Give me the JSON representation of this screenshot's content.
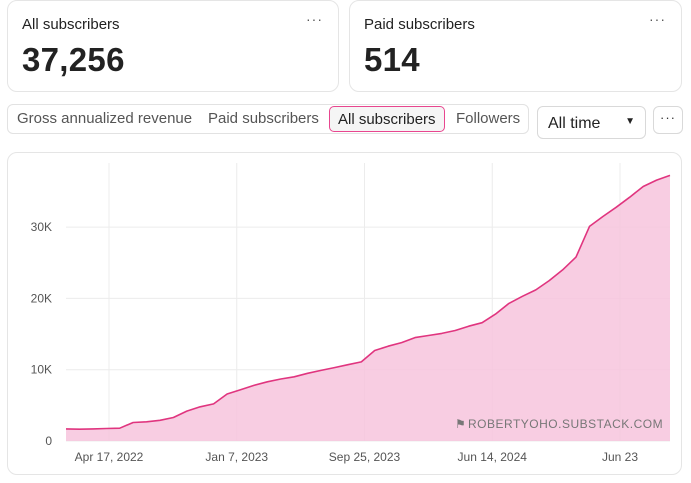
{
  "cards": [
    {
      "label": "All subscribers",
      "value": "37,256"
    },
    {
      "label": "Paid subscribers",
      "value": "514"
    }
  ],
  "card_more_icon": "more-horizontal-icon",
  "tabs": [
    {
      "label": "Gross annualized revenue",
      "active": false
    },
    {
      "label": "Paid subscribers",
      "active": false
    },
    {
      "label": "All subscribers",
      "active": true
    },
    {
      "label": "Followers",
      "active": false
    }
  ],
  "range_select": {
    "value": "All time"
  },
  "more_button": {
    "icon": "more-horizontal-icon",
    "glyph": "···"
  },
  "colors": {
    "accent": "#e8468f",
    "line": "#e0357f",
    "fill": "#f7c4dd"
  },
  "watermark": "ROBERTYOHO.SUBSTACK.COM",
  "chart_data": {
    "type": "area",
    "title": "",
    "xlabel": "",
    "ylabel": "",
    "y_ticks": [
      {
        "label": "0",
        "value": 0
      },
      {
        "label": "10K",
        "value": 10000
      },
      {
        "label": "20K",
        "value": 20000
      },
      {
        "label": "30K",
        "value": 30000
      }
    ],
    "x_ticks": [
      "Apr 17, 2022",
      "Jan 7, 2023",
      "Sep 25, 2023",
      "Jun 14, 2024",
      "Jun 23"
    ],
    "ylim": [
      0,
      39000
    ],
    "grid": true,
    "series": [
      {
        "values": [
          1700,
          1650,
          1700,
          1750,
          1800,
          2600,
          2700,
          2900,
          3300,
          4200,
          4800,
          5200,
          6600,
          7200,
          7800,
          8300,
          8700,
          9000,
          9500,
          9900,
          10300,
          10700,
          11100,
          12700,
          13300,
          13800,
          14500,
          14800,
          15100,
          15500,
          16100,
          16600,
          17800,
          19300,
          20300,
          21200,
          22500,
          24000,
          25800,
          30100,
          31500,
          32800,
          34200,
          35700,
          36600,
          37256
        ]
      }
    ]
  }
}
